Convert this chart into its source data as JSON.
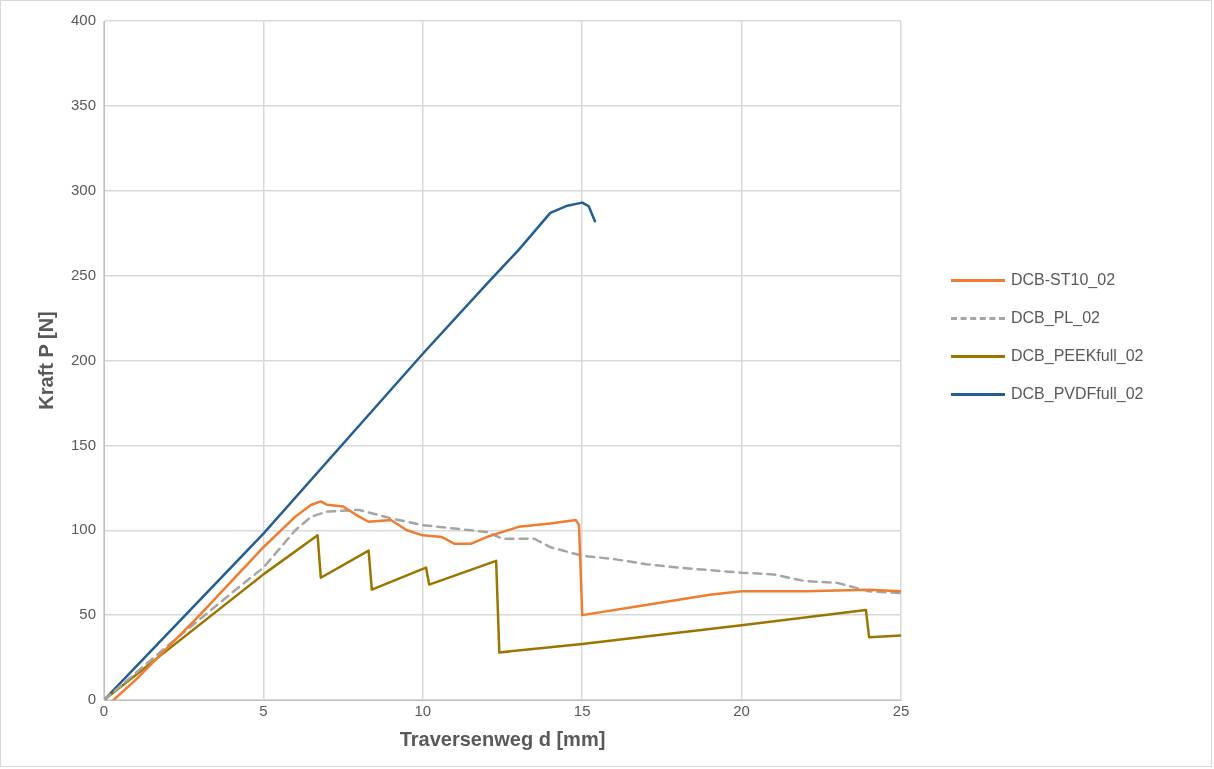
{
  "chart_data": {
    "type": "line",
    "xlabel": "Traversenweg d [mm]",
    "ylabel": "Kraft P [N]",
    "xlim": [
      0,
      25
    ],
    "xticks": [
      0,
      5,
      10,
      15,
      20,
      25
    ],
    "ylim": [
      0,
      400
    ],
    "yticks": [
      0,
      50,
      100,
      150,
      200,
      250,
      300,
      350,
      400
    ],
    "grid": true,
    "legend": "right",
    "marker": "none",
    "series": [
      {
        "name": "DCB-ST10_02",
        "color": "#ed7d31",
        "line_style": "solid",
        "x": [
          0.3,
          1,
          3,
          5,
          6,
          6.5,
          6.8,
          7,
          7.5,
          8,
          8.3,
          9,
          9.5,
          10,
          10.6,
          11,
          11.5,
          12,
          13,
          14,
          14.8,
          14.9,
          15,
          17,
          19,
          20,
          22,
          24,
          25
        ],
        "values": [
          0,
          12,
          50,
          90,
          108,
          115,
          117,
          115,
          114,
          108,
          105,
          106,
          100,
          97,
          96,
          92,
          92,
          96,
          102,
          104,
          106,
          103,
          50,
          56,
          62,
          64,
          64,
          65,
          64
        ]
      },
      {
        "name": "DCB_PL_02",
        "color": "#a5a5a5",
        "line_style": "dashed",
        "x": [
          0,
          2,
          4,
          5,
          6,
          6.5,
          7,
          8,
          9,
          10,
          11,
          12,
          12.5,
          13.5,
          14,
          15,
          16,
          17,
          18,
          20,
          21,
          22,
          23,
          24,
          25
        ],
        "values": [
          0,
          32,
          63,
          78,
          100,
          108,
          111,
          112,
          107,
          103,
          101,
          99,
          95,
          95,
          90,
          85,
          83,
          80,
          78,
          75,
          74,
          70,
          69,
          64,
          63
        ]
      },
      {
        "name": "DCB_PEEKfull_02",
        "color": "#9c7500",
        "line_style": "solid",
        "x": [
          0,
          5,
          6.7,
          6.8,
          8.3,
          8.4,
          10.1,
          10.2,
          12.3,
          12.4,
          15,
          20,
          23.9,
          24,
          25
        ],
        "values": [
          0,
          74,
          97,
          72,
          88,
          65,
          78,
          68,
          82,
          28,
          33,
          44,
          53,
          37,
          38
        ]
      },
      {
        "name": "DCB_PVDFfull_02",
        "color": "#255e91",
        "line_style": "solid",
        "x": [
          0,
          5,
          10,
          12,
          13,
          14,
          14.5,
          15,
          15.2,
          15.4
        ],
        "values": [
          0,
          98,
          204,
          245,
          265,
          287,
          291,
          293,
          291,
          282
        ]
      }
    ]
  }
}
